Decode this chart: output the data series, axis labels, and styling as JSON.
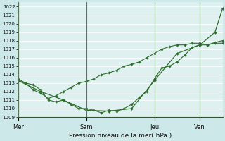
{
  "xlabel": "Pression niveau de la mer( hPa )",
  "bg_color": "#cce8e8",
  "plot_bg_color": "#dff0f0",
  "grid_color": "#ffffff",
  "line_color": "#2d6e2d",
  "ylim": [
    1009,
    1022.5
  ],
  "yticks": [
    1009,
    1010,
    1011,
    1012,
    1013,
    1014,
    1015,
    1016,
    1017,
    1018,
    1019,
    1020,
    1021,
    1022
  ],
  "day_labels": [
    "Mer",
    "Sam",
    "Jeu",
    "Ven"
  ],
  "day_positions": [
    0,
    9,
    18,
    24
  ],
  "line1_x": [
    0,
    1,
    2,
    3,
    4,
    5,
    6,
    7,
    8,
    9,
    10,
    11,
    12,
    13,
    14,
    15,
    16,
    17,
    18,
    19,
    20,
    21,
    22,
    23,
    24,
    25,
    26,
    27
  ],
  "line1_y": [
    1013.3,
    1013.0,
    1012.8,
    1012.2,
    1011.0,
    1010.8,
    1011.0,
    1010.5,
    1010.0,
    1010.0,
    1009.8,
    1009.5,
    1009.8,
    1009.7,
    1010.0,
    1010.5,
    1011.3,
    1012.0,
    1013.5,
    1014.8,
    1015.0,
    1015.5,
    1016.3,
    1017.2,
    1017.5,
    1017.5,
    1017.7,
    1017.7
  ],
  "line2_x": [
    0,
    1,
    2,
    3,
    4,
    5,
    6,
    7,
    8,
    9,
    10,
    11,
    12,
    13,
    14,
    15,
    16,
    17,
    18,
    19,
    20,
    21,
    22,
    23,
    24,
    25,
    26,
    27
  ],
  "line2_y": [
    1013.5,
    1013.0,
    1012.2,
    1011.8,
    1011.2,
    1011.5,
    1012.0,
    1012.5,
    1013.0,
    1013.2,
    1013.5,
    1014.0,
    1014.2,
    1014.5,
    1015.0,
    1015.2,
    1015.5,
    1016.0,
    1016.5,
    1017.0,
    1017.3,
    1017.5,
    1017.5,
    1017.7,
    1017.7,
    1017.5,
    1017.8,
    1018.0
  ],
  "line3_x": [
    0,
    3,
    6,
    9,
    12,
    15,
    18,
    21,
    24,
    26,
    27
  ],
  "line3_y": [
    1013.3,
    1012.0,
    1011.0,
    1009.8,
    1009.7,
    1010.0,
    1013.3,
    1016.5,
    1017.5,
    1019.0,
    1021.8
  ],
  "xlim": [
    0,
    27
  ]
}
